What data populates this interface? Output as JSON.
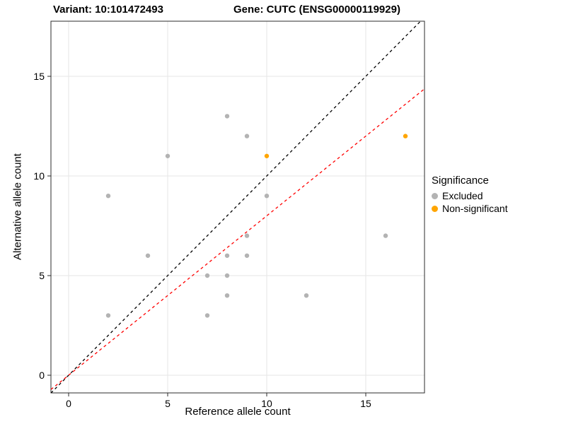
{
  "chart_data": {
    "type": "scatter",
    "titles": {
      "left": "Variant: 10:101472493",
      "right": "Gene: CUTC (ENSG00000119929)"
    },
    "xlabel": "Reference allele count",
    "ylabel": "Alternative allele count",
    "xlim": [
      -0.893,
      17.964
    ],
    "ylim": [
      -0.887,
      17.766
    ],
    "xticks": [
      0,
      5,
      10,
      15
    ],
    "yticks": [
      0,
      5,
      10,
      15
    ],
    "grid": "major gridlines, light gray on white panel",
    "series": [
      {
        "name": "Excluded",
        "color": "#b3b3b3",
        "points": [
          [
            2,
            3
          ],
          [
            2,
            9
          ],
          [
            4,
            6
          ],
          [
            5,
            11
          ],
          [
            7,
            3
          ],
          [
            7,
            5
          ],
          [
            8,
            4
          ],
          [
            8,
            5
          ],
          [
            8,
            6
          ],
          [
            8,
            13
          ],
          [
            9,
            6
          ],
          [
            9,
            7
          ],
          [
            9,
            12
          ],
          [
            10,
            9
          ],
          [
            12,
            4
          ],
          [
            16,
            7
          ]
        ]
      },
      {
        "name": "Non-significant",
        "color": "#FFA500",
        "points": [
          [
            10,
            11
          ],
          [
            17,
            12
          ]
        ]
      }
    ],
    "lines": [
      {
        "name": "identity-line",
        "style": "dashed",
        "color": "#000000",
        "slope": 1.0,
        "intercept": 0
      },
      {
        "name": "fit-line",
        "style": "dashed",
        "color": "#FF0000",
        "slope": 0.8,
        "intercept": 0
      }
    ],
    "legend": {
      "title": "Significance",
      "position": "right",
      "entries": [
        {
          "label": "Excluded",
          "color": "#b3b3b3"
        },
        {
          "label": "Non-significant",
          "color": "#FFA500"
        }
      ]
    }
  }
}
